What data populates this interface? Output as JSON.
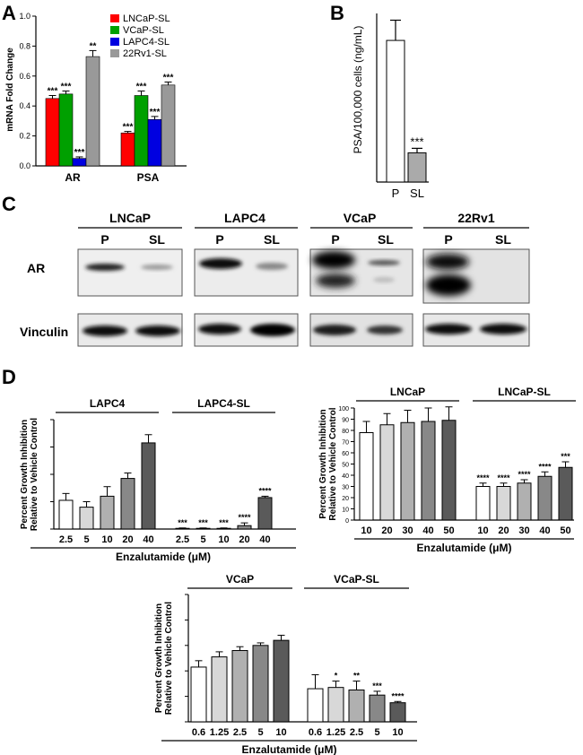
{
  "panels": {
    "A": "A",
    "B": "B",
    "C": "C",
    "D": "D"
  },
  "chart_data": [
    {
      "id": "A",
      "type": "bar",
      "ylabel": "mRNA Fold Change",
      "ylim": [
        0,
        1.0
      ],
      "yticks": [
        "0.0",
        "0.2",
        "0.4",
        "0.6",
        "0.8",
        "1.0"
      ],
      "categories": [
        "AR",
        "PSA"
      ],
      "legend_position": "top-right",
      "series": [
        {
          "name": "LNCaP-SL",
          "color": "#ff0000",
          "values": [
            0.45,
            0.22
          ],
          "errors": [
            0.02,
            0.01
          ],
          "sig": [
            "***",
            "***"
          ]
        },
        {
          "name": "VCaP-SL",
          "color": "#00a000",
          "values": [
            0.48,
            0.47
          ],
          "errors": [
            0.02,
            0.03
          ],
          "sig": [
            "***",
            "***"
          ]
        },
        {
          "name": "LAPC4-SL",
          "color": "#0000e0",
          "values": [
            0.05,
            0.31
          ],
          "errors": [
            0.01,
            0.02
          ],
          "sig": [
            "***",
            "***"
          ]
        },
        {
          "name": "22Rv1-SL",
          "color": "#999999",
          "values": [
            0.73,
            0.54
          ],
          "errors": [
            0.04,
            0.02
          ],
          "sig": [
            "**",
            "***"
          ]
        }
      ]
    },
    {
      "id": "B",
      "type": "bar",
      "ylabel": "PSA/100,000 cells (ng/mL)",
      "categories": [
        "P",
        "SL"
      ],
      "values": [
        12.6,
        2.6
      ],
      "errors": [
        1.8,
        0.4
      ],
      "colors": [
        "#ffffff",
        "#aaaaaa"
      ],
      "sig": [
        "",
        "***"
      ],
      "ylim": [
        0,
        15
      ]
    },
    {
      "id": "D1",
      "type": "bar",
      "ylabel": [
        "Percent Growth Inhibition",
        "Relative to Vehicle Control"
      ],
      "xlabel": "Enzalutamide (μM)",
      "groups": [
        "LAPC4",
        "LAPC4-SL"
      ],
      "categories": [
        "2.5",
        "5",
        "10",
        "20",
        "40",
        "2.5",
        "5",
        "10",
        "20",
        "40"
      ],
      "values": [
        21,
        16,
        24,
        37,
        63,
        0.5,
        0.5,
        0.5,
        2.5,
        23
      ],
      "errors": [
        5,
        4,
        7,
        4,
        6,
        0.3,
        0.3,
        0.3,
        2,
        1
      ],
      "sig": [
        "",
        "",
        "",
        "",
        "",
        "***",
        "***",
        "***",
        "****",
        "****"
      ],
      "ylim": [
        0,
        80
      ]
    },
    {
      "id": "D2",
      "type": "bar",
      "ylabel": [
        "Percent Growth Inhibition",
        "Relative to Vehicle Control"
      ],
      "xlabel": "Enzalutamide (μM)",
      "groups": [
        "LNCaP",
        "LNCaP-SL"
      ],
      "yticks": [
        "0",
        "10",
        "20",
        "30",
        "40",
        "50",
        "60",
        "70",
        "80",
        "90",
        "100"
      ],
      "categories": [
        "10",
        "20",
        "30",
        "40",
        "50",
        "10",
        "20",
        "30",
        "40",
        "50"
      ],
      "values": [
        78,
        85,
        87,
        88,
        89,
        30,
        30,
        33,
        39,
        47
      ],
      "errors": [
        10,
        10,
        11,
        12,
        12,
        3,
        3,
        3,
        4,
        5
      ],
      "sig": [
        "",
        "",
        "",
        "",
        "",
        "****",
        "****",
        "****",
        "****",
        "***"
      ],
      "ylim": [
        0,
        100
      ]
    },
    {
      "id": "D3",
      "type": "bar",
      "ylabel": [
        "Percent Growth Inhibition",
        "Relative to Vehicle Control"
      ],
      "xlabel": "Enzalutamide (μM)",
      "groups": [
        "VCaP",
        "VCaP-SL"
      ],
      "categories": [
        "0.6",
        "1.25",
        "2.5",
        "5",
        "10",
        "0.6",
        "1.25",
        "2.5",
        "5",
        "10"
      ],
      "values": [
        43,
        51,
        56,
        60,
        64,
        26,
        27,
        25,
        21,
        15
      ],
      "errors": [
        5,
        4,
        3,
        2,
        4,
        11,
        5,
        7,
        3,
        1
      ],
      "sig": [
        "",
        "",
        "",
        "",
        "",
        "",
        "*",
        "**",
        "***",
        "****"
      ],
      "ylim": [
        0,
        100
      ]
    }
  ],
  "blots": {
    "cell_lines": [
      "LNCaP",
      "LAPC4",
      "VCaP",
      "22Rv1"
    ],
    "lanes": [
      "P",
      "SL"
    ],
    "rows": [
      "AR",
      "Vinculin"
    ]
  }
}
